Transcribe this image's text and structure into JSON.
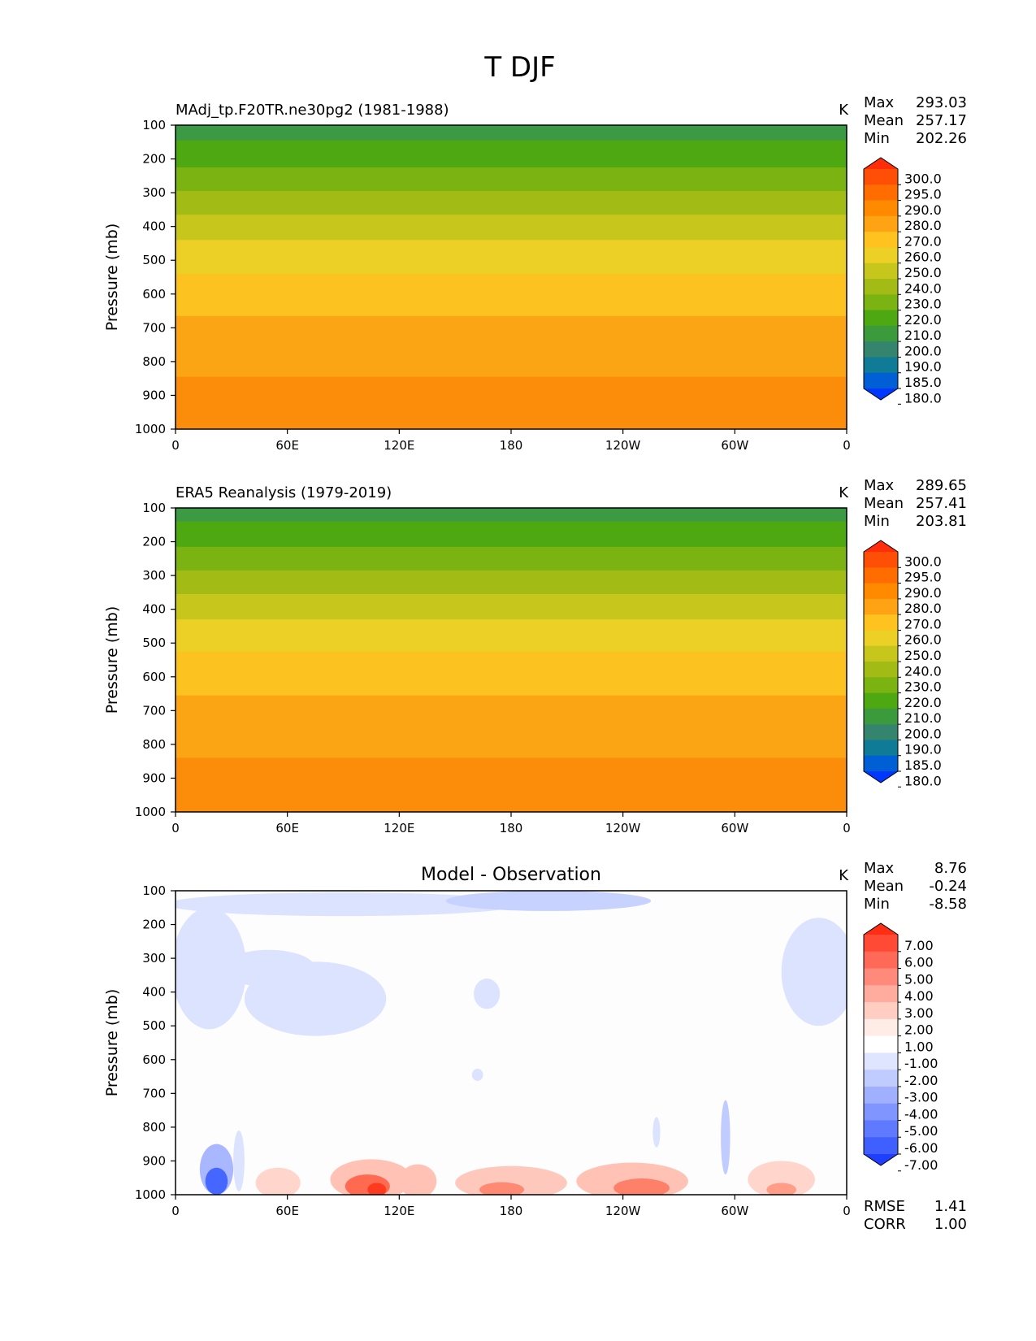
{
  "page_title": "T DJF",
  "chart_data": [
    {
      "type": "contour",
      "title": "MAdj_tp.F20TR.ne30pg2 (1981-1988)",
      "units": "K",
      "ylabel": "Pressure (mb)",
      "xlabel": "",
      "x_ticks": [
        "0",
        "60E",
        "120E",
        "180",
        "120W",
        "60W",
        "0"
      ],
      "y_ticks": [
        "100",
        "200",
        "300",
        "400",
        "500",
        "600",
        "700",
        "800",
        "900",
        "1000"
      ],
      "ylim": [
        100,
        1000
      ],
      "stats": [
        {
          "label": "Max",
          "value": "293.03"
        },
        {
          "label": "Mean",
          "value": "257.17"
        },
        {
          "label": "Min",
          "value": "202.26"
        }
      ],
      "colorbar_levels": [
        "300.0",
        "295.0",
        "290.0",
        "280.0",
        "270.0",
        "260.0",
        "250.0",
        "240.0",
        "230.0",
        "220.0",
        "210.0",
        "200.0",
        "190.0",
        "185.0",
        "180.0"
      ],
      "colorbar_colors": [
        "#ff2d0a",
        "#ff4e05",
        "#ff6d00",
        "#ff8a00",
        "#ffa314",
        "#ffc21f",
        "#ecd026",
        "#c6c61d",
        "#a2bc15",
        "#7bb312",
        "#4ea811",
        "#3a9a3c",
        "#35856e",
        "#107b96",
        "#005fd4",
        "#0037ff"
      ],
      "bands": [
        {
          "p_top": 100,
          "p_bottom": 145,
          "color": "#3d9a44"
        },
        {
          "p_top": 145,
          "p_bottom": 225,
          "color": "#4ea811"
        },
        {
          "p_top": 225,
          "p_bottom": 295,
          "color": "#7bb312"
        },
        {
          "p_top": 295,
          "p_bottom": 365,
          "color": "#a2bc15"
        },
        {
          "p_top": 365,
          "p_bottom": 440,
          "color": "#c6c61d"
        },
        {
          "p_top": 440,
          "p_bottom": 540,
          "color": "#ecd026"
        },
        {
          "p_top": 540,
          "p_bottom": 665,
          "color": "#fcc21f"
        },
        {
          "p_top": 665,
          "p_bottom": 845,
          "color": "#fba514"
        },
        {
          "p_top": 845,
          "p_bottom": 1000,
          "color": "#fb8d0a"
        }
      ]
    },
    {
      "type": "contour",
      "title": "ERA5 Reanalysis (1979-2019)",
      "units": "K",
      "ylabel": "Pressure (mb)",
      "xlabel": "",
      "x_ticks": [
        "0",
        "60E",
        "120E",
        "180",
        "120W",
        "60W",
        "0"
      ],
      "y_ticks": [
        "100",
        "200",
        "300",
        "400",
        "500",
        "600",
        "700",
        "800",
        "900",
        "1000"
      ],
      "ylim": [
        100,
        1000
      ],
      "stats": [
        {
          "label": "Max",
          "value": "289.65"
        },
        {
          "label": "Mean",
          "value": "257.41"
        },
        {
          "label": "Min",
          "value": "203.81"
        }
      ],
      "colorbar_levels": [
        "300.0",
        "295.0",
        "290.0",
        "280.0",
        "270.0",
        "260.0",
        "250.0",
        "240.0",
        "230.0",
        "220.0",
        "210.0",
        "200.0",
        "190.0",
        "185.0",
        "180.0"
      ],
      "colorbar_colors": [
        "#ff2d0a",
        "#ff4e05",
        "#ff6d00",
        "#ff8a00",
        "#ffa314",
        "#ffc21f",
        "#ecd026",
        "#c6c61d",
        "#a2bc15",
        "#7bb312",
        "#4ea811",
        "#3a9a3c",
        "#35856e",
        "#107b96",
        "#005fd4",
        "#0037ff"
      ],
      "bands": [
        {
          "p_top": 100,
          "p_bottom": 140,
          "color": "#3d9a44"
        },
        {
          "p_top": 140,
          "p_bottom": 215,
          "color": "#4ea811"
        },
        {
          "p_top": 215,
          "p_bottom": 285,
          "color": "#7bb312"
        },
        {
          "p_top": 285,
          "p_bottom": 355,
          "color": "#a2bc15"
        },
        {
          "p_top": 355,
          "p_bottom": 430,
          "color": "#c6c61d"
        },
        {
          "p_top": 430,
          "p_bottom": 525,
          "color": "#ecd026"
        },
        {
          "p_top": 525,
          "p_bottom": 655,
          "color": "#fcc21f"
        },
        {
          "p_top": 655,
          "p_bottom": 840,
          "color": "#fba514"
        },
        {
          "p_top": 840,
          "p_bottom": 1000,
          "color": "#fb8d0a"
        }
      ]
    },
    {
      "type": "contour",
      "title": "Model - Observation",
      "units": "K",
      "ylabel": "Pressure (mb)",
      "xlabel": "",
      "x_ticks": [
        "0",
        "60E",
        "120E",
        "180",
        "120W",
        "60W",
        "0"
      ],
      "y_ticks": [
        "100",
        "200",
        "300",
        "400",
        "500",
        "600",
        "700",
        "800",
        "900",
        "1000"
      ],
      "ylim": [
        100,
        1000
      ],
      "stats": [
        {
          "label": "Max",
          "value": "8.76"
        },
        {
          "label": "Mean",
          "value": "-0.24"
        },
        {
          "label": "Min",
          "value": "-8.58"
        }
      ],
      "extra_stats": [
        {
          "label": "RMSE",
          "value": "1.41"
        },
        {
          "label": "CORR",
          "value": "1.00"
        }
      ],
      "colorbar_levels": [
        "7.00",
        "6.00",
        "5.00",
        "4.00",
        "3.00",
        "2.00",
        "1.00",
        "-1.00",
        "-2.00",
        "-3.00",
        "-4.00",
        "-5.00",
        "-6.00",
        "-7.00"
      ],
      "colorbar_colors": [
        "#ff2d12",
        "#ff4b35",
        "#ff6a58",
        "#ff8a7b",
        "#ffac9e",
        "#ffcdc2",
        "#ffece6",
        "#ffffff",
        "#dfe5ff",
        "#c0cbff",
        "#a0b0ff",
        "#8095ff",
        "#607aff",
        "#405fff",
        "#1f3fff"
      ],
      "blobs": [
        {
          "lon": 90,
          "p": 140,
          "rlon": 95,
          "rp": 35,
          "color": "#dce3ff"
        },
        {
          "lon": 200,
          "p": 130,
          "rlon": 55,
          "rp": 30,
          "color": "#c8d2ff"
        },
        {
          "lon": 345,
          "p": 340,
          "rlon": 20,
          "rp": 160,
          "color": "#dce3ff"
        },
        {
          "lon": 18,
          "p": 330,
          "rlon": 20,
          "rp": 180,
          "color": "#dce3ff"
        },
        {
          "lon": 75,
          "p": 420,
          "rlon": 38,
          "rp": 110,
          "color": "#dce3ff"
        },
        {
          "lon": 50,
          "p": 330,
          "rlon": 25,
          "rp": 55,
          "color": "#dce3ff"
        },
        {
          "lon": 167,
          "p": 405,
          "rlon": 7,
          "rp": 45,
          "color": "#dce3ff"
        },
        {
          "lon": 162,
          "p": 645,
          "rlon": 3,
          "rp": 18,
          "color": "#dce3ff"
        },
        {
          "lon": 22,
          "p": 925,
          "rlon": 9,
          "rp": 75,
          "color": "#a8b7ff"
        },
        {
          "lon": 22,
          "p": 960,
          "rlon": 6,
          "rp": 40,
          "color": "#4566ff"
        },
        {
          "lon": 34,
          "p": 900,
          "rlon": 3,
          "rp": 90,
          "color": "#dce3ff"
        },
        {
          "lon": 295,
          "p": 830,
          "rlon": 2.5,
          "rp": 110,
          "color": "#c0cbff"
        },
        {
          "lon": 258,
          "p": 815,
          "rlon": 2,
          "rp": 45,
          "color": "#dce3ff"
        },
        {
          "lon": 105,
          "p": 955,
          "rlon": 22,
          "rp": 60,
          "color": "#ffc2b5"
        },
        {
          "lon": 103,
          "p": 975,
          "rlon": 12,
          "rp": 35,
          "color": "#ff6a50"
        },
        {
          "lon": 108,
          "p": 985,
          "rlon": 5,
          "rp": 20,
          "color": "#ff3a1e"
        },
        {
          "lon": 55,
          "p": 965,
          "rlon": 12,
          "rp": 45,
          "color": "#ffd5cc"
        },
        {
          "lon": 130,
          "p": 960,
          "rlon": 10,
          "rp": 50,
          "color": "#ffc2b5"
        },
        {
          "lon": 180,
          "p": 965,
          "rlon": 30,
          "rp": 50,
          "color": "#ffc8bc"
        },
        {
          "lon": 175,
          "p": 985,
          "rlon": 12,
          "rp": 22,
          "color": "#ff8a73"
        },
        {
          "lon": 245,
          "p": 960,
          "rlon": 30,
          "rp": 55,
          "color": "#ffc2b5"
        },
        {
          "lon": 250,
          "p": 980,
          "rlon": 15,
          "rp": 28,
          "color": "#ff8068"
        },
        {
          "lon": 325,
          "p": 955,
          "rlon": 18,
          "rp": 55,
          "color": "#ffd5cc"
        },
        {
          "lon": 325,
          "p": 985,
          "rlon": 8,
          "rp": 20,
          "color": "#ff9d88"
        }
      ]
    }
  ]
}
